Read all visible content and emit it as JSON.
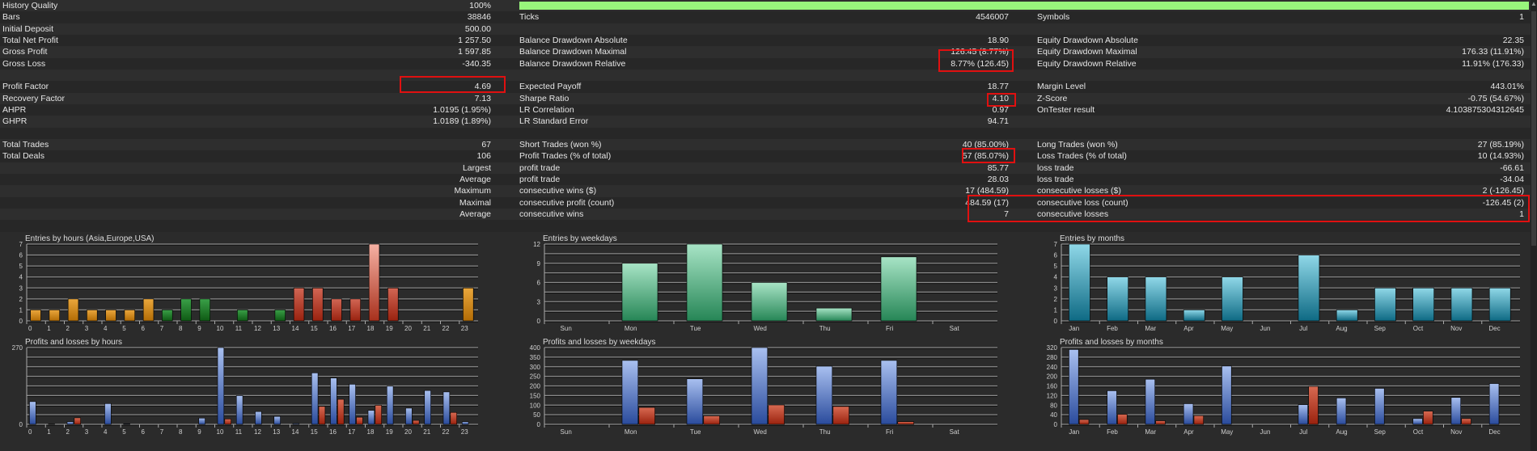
{
  "table": {
    "rows": [
      [
        [
          "History Quality",
          "100%"
        ],
        "bar",
        null
      ],
      [
        [
          "Bars",
          "38846"
        ],
        [
          "Ticks",
          "4546007"
        ],
        [
          "Symbols",
          "1"
        ]
      ],
      [
        [
          "Initial Deposit",
          "500.00"
        ],
        null,
        null
      ],
      [
        [
          "Total Net Profit",
          "1 257.50"
        ],
        [
          "Balance Drawdown Absolute",
          "18.90"
        ],
        [
          "Equity Drawdown Absolute",
          "22.35"
        ]
      ],
      [
        [
          "Gross Profit",
          "1 597.85"
        ],
        [
          "Balance Drawdown Maximal",
          "126.45 (8.77%)"
        ],
        [
          "Equity Drawdown Maximal",
          "176.33 (11.91%)"
        ]
      ],
      [
        [
          "Gross Loss",
          "-340.35"
        ],
        [
          "Balance Drawdown Relative",
          "8.77% (126.45)"
        ],
        [
          "Equity Drawdown Relative",
          "11.91% (176.33)"
        ]
      ],
      [
        null,
        null,
        null
      ],
      [
        [
          "Profit Factor",
          "4.69"
        ],
        [
          "Expected Payoff",
          "18.77"
        ],
        [
          "Margin Level",
          "443.01%"
        ]
      ],
      [
        [
          "Recovery Factor",
          "7.13"
        ],
        [
          "Sharpe Ratio",
          "4.10"
        ],
        [
          "Z-Score",
          "-0.75 (54.67%)"
        ]
      ],
      [
        [
          "AHPR",
          "1.0195 (1.95%)"
        ],
        [
          "LR Correlation",
          "0.97"
        ],
        [
          "OnTester result",
          "4.103875304312645"
        ]
      ],
      [
        [
          "GHPR",
          "1.0189 (1.89%)"
        ],
        [
          "LR Standard Error",
          "94.71"
        ],
        null
      ],
      [
        null,
        null,
        null
      ],
      [
        [
          "Total Trades",
          "67"
        ],
        [
          "Short Trades (won %)",
          "40 (85.00%)"
        ],
        [
          "Long Trades (won %)",
          "27 (85.19%)"
        ]
      ],
      [
        [
          "Total Deals",
          "106"
        ],
        [
          "Profit Trades (% of total)",
          "57 (85.07%)"
        ],
        [
          "Loss Trades (% of total)",
          "10 (14.93%)"
        ]
      ],
      [
        [
          "",
          "Largest"
        ],
        [
          "profit trade",
          "85.77"
        ],
        [
          "loss trade",
          "-66.61"
        ]
      ],
      [
        [
          "",
          "Average"
        ],
        [
          "profit trade",
          "28.03"
        ],
        [
          "loss trade",
          "-34.04"
        ]
      ],
      [
        [
          "",
          "Maximum"
        ],
        [
          "consecutive wins ($)",
          "17 (484.59)"
        ],
        [
          "consecutive losses ($)",
          "2 (-126.45)"
        ]
      ],
      [
        [
          "",
          "Maximal"
        ],
        [
          "consecutive profit (count)",
          "484.59 (17)"
        ],
        [
          "consecutive loss (count)",
          "-126.45 (2)"
        ]
      ],
      [
        [
          "",
          "Average"
        ],
        [
          "consecutive wins",
          "7"
        ],
        [
          "consecutive losses",
          "1"
        ]
      ],
      [
        null,
        null,
        null
      ]
    ],
    "history_quality_fraction": 1.0
  },
  "colors": {
    "highlight": "#e01010",
    "quality_bar": "#98f57c",
    "asia": "#d48a1e",
    "europe": "#1f7a26",
    "usa": "#b23a28",
    "profit": "#5577c4",
    "loss": "#b8361f",
    "weekday": "#4fae80",
    "month": "#2a93ad"
  },
  "chart_data": [
    {
      "type": "bar",
      "title": "Entries by hours (Asia,Europe,USA)",
      "categories": [
        "0",
        "1",
        "2",
        "3",
        "4",
        "5",
        "6",
        "7",
        "8",
        "9",
        "10",
        "11",
        "12",
        "13",
        "14",
        "15",
        "16",
        "17",
        "18",
        "19",
        "20",
        "21",
        "22",
        "23"
      ],
      "values": [
        1,
        1,
        2,
        1,
        1,
        1,
        2,
        1,
        2,
        2,
        0,
        1,
        0,
        1,
        3,
        3,
        2,
        2,
        7,
        3,
        0,
        0,
        0,
        3
      ],
      "sessions": [
        "asia",
        "asia",
        "asia",
        "asia",
        "asia",
        "asia",
        "asia",
        "europe",
        "europe",
        "europe",
        "europe",
        "europe",
        "europe",
        "europe",
        "usa",
        "usa",
        "usa",
        "usa",
        "usa",
        "usa",
        "usa",
        "usa",
        "usa",
        "asia"
      ],
      "ylim": [
        0,
        7
      ],
      "yticks": [
        "0",
        "1",
        "2",
        "3",
        "4",
        "5",
        "6",
        "7"
      ]
    },
    {
      "type": "bar",
      "title": "Profits and losses by hours",
      "categories": [
        "0",
        "1",
        "2",
        "3",
        "4",
        "5",
        "6",
        "7",
        "8",
        "9",
        "10",
        "11",
        "12",
        "13",
        "14",
        "15",
        "16",
        "17",
        "18",
        "19",
        "20",
        "21",
        "22",
        "23"
      ],
      "series": [
        {
          "name": "profit",
          "values": [
            80,
            1,
            9,
            0,
            73,
            2,
            0,
            0,
            0,
            22,
            270,
            101,
            45,
            28,
            3,
            181,
            163,
            141,
            49,
            134,
            57,
            119,
            114,
            9
          ]
        },
        {
          "name": "loss",
          "values": [
            0,
            0,
            23,
            0,
            0,
            0,
            0,
            0,
            0,
            0,
            19,
            0,
            0,
            0,
            0,
            63,
            88,
            25,
            67,
            0,
            14,
            0,
            42,
            0
          ]
        }
      ],
      "ylim": [
        0,
        270
      ],
      "yticks": [
        "0",
        "270"
      ]
    },
    {
      "type": "bar",
      "title": "Entries by weekdays",
      "categories": [
        "Sun",
        "Mon",
        "Tue",
        "Wed",
        "Thu",
        "Fri",
        "Sat"
      ],
      "values": [
        0,
        9,
        12,
        6,
        2,
        10,
        0
      ],
      "ylim": [
        0,
        12
      ],
      "yticks": [
        "0",
        "3",
        "6",
        "9",
        "12"
      ]
    },
    {
      "type": "bar",
      "title": "Profits and losses by weekdays",
      "categories": [
        "Sun",
        "Mon",
        "Tue",
        "Wed",
        "Thu",
        "Fri",
        "Sat"
      ],
      "series": [
        {
          "name": "profit",
          "values": [
            0,
            333,
            237,
            400,
            303,
            333,
            0
          ]
        },
        {
          "name": "loss",
          "values": [
            0,
            88,
            44,
            101,
            93,
            14,
            0
          ]
        }
      ],
      "ylim": [
        0,
        400
      ],
      "yticks": [
        "0",
        "50",
        "100",
        "150",
        "200",
        "250",
        "300",
        "350",
        "400"
      ]
    },
    {
      "type": "bar",
      "title": "Entries by months",
      "categories": [
        "Jan",
        "Feb",
        "Mar",
        "Apr",
        "May",
        "Jun",
        "Jul",
        "Aug",
        "Sep",
        "Oct",
        "Nov",
        "Dec"
      ],
      "values": [
        7,
        4,
        4,
        1,
        4,
        0,
        6,
        1,
        3,
        3,
        3,
        3
      ],
      "ylim": [
        0,
        7
      ],
      "yticks": [
        "0",
        "1",
        "2",
        "3",
        "4",
        "5",
        "6",
        "7"
      ]
    },
    {
      "type": "bar",
      "title": "Profits and losses by months",
      "categories": [
        "Jan",
        "Feb",
        "Mar",
        "Apr",
        "May",
        "Jun",
        "Jul",
        "Aug",
        "Sep",
        "Oct",
        "Nov",
        "Dec"
      ],
      "series": [
        {
          "name": "profit",
          "values": [
            312,
            140,
            188,
            86,
            243,
            0,
            82,
            110,
            150,
            24,
            112,
            170
          ]
        },
        {
          "name": "loss",
          "values": [
            20,
            42,
            15,
            36,
            0,
            0,
            158,
            0,
            0,
            55,
            24,
            0
          ]
        }
      ],
      "ylim": [
        0,
        320
      ],
      "yticks": [
        "0",
        "40",
        "80",
        "120",
        "160",
        "200",
        "240",
        "280",
        "320"
      ]
    }
  ]
}
